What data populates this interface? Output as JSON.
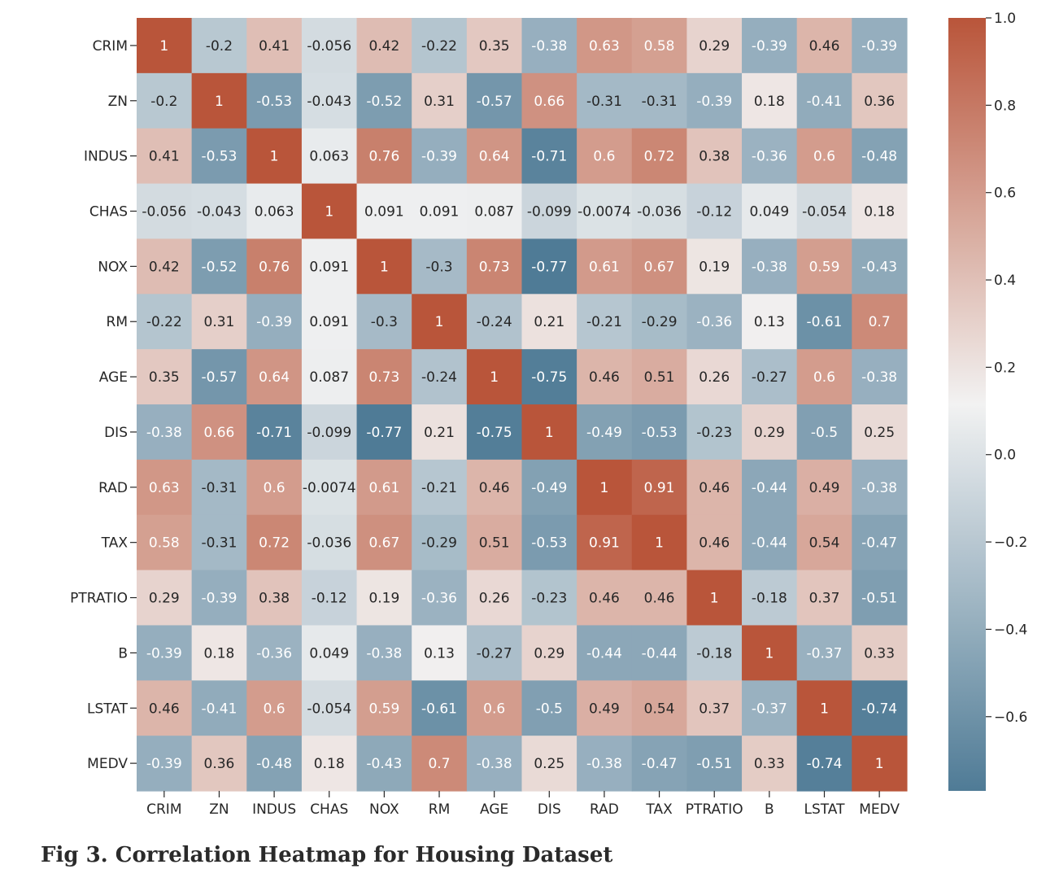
{
  "caption": "Fig 3. Correlation Heatmap for Housing Dataset",
  "chart_data": {
    "type": "heatmap",
    "title": "",
    "rows": [
      "CRIM",
      "ZN",
      "INDUS",
      "CHAS",
      "NOX",
      "RM",
      "AGE",
      "DIS",
      "RAD",
      "TAX",
      "PTRATIO",
      "B",
      "LSTAT",
      "MEDV"
    ],
    "columns": [
      "CRIM",
      "ZN",
      "INDUS",
      "CHAS",
      "NOX",
      "RM",
      "AGE",
      "DIS",
      "RAD",
      "TAX",
      "PTRATIO",
      "B",
      "LSTAT",
      "MEDV"
    ],
    "values": [
      [
        1,
        -0.2,
        0.41,
        -0.056,
        0.42,
        -0.22,
        0.35,
        -0.38,
        0.63,
        0.58,
        0.29,
        -0.39,
        0.46,
        -0.39
      ],
      [
        -0.2,
        1,
        -0.53,
        -0.043,
        -0.52,
        0.31,
        -0.57,
        0.66,
        -0.31,
        -0.31,
        -0.39,
        0.18,
        -0.41,
        0.36
      ],
      [
        0.41,
        -0.53,
        1,
        0.063,
        0.76,
        -0.39,
        0.64,
        -0.71,
        0.6,
        0.72,
        0.38,
        -0.36,
        0.6,
        -0.48
      ],
      [
        -0.056,
        -0.043,
        0.063,
        1,
        0.091,
        0.091,
        0.087,
        -0.099,
        -0.0074,
        -0.036,
        -0.12,
        0.049,
        -0.054,
        0.18
      ],
      [
        0.42,
        -0.52,
        0.76,
        0.091,
        1,
        -0.3,
        0.73,
        -0.77,
        0.61,
        0.67,
        0.19,
        -0.38,
        0.59,
        -0.43
      ],
      [
        -0.22,
        0.31,
        -0.39,
        0.091,
        -0.3,
        1,
        -0.24,
        0.21,
        -0.21,
        -0.29,
        -0.36,
        0.13,
        -0.61,
        0.7
      ],
      [
        0.35,
        -0.57,
        0.64,
        0.087,
        0.73,
        -0.24,
        1,
        -0.75,
        0.46,
        0.51,
        0.26,
        -0.27,
        0.6,
        -0.38
      ],
      [
        -0.38,
        0.66,
        -0.71,
        -0.099,
        -0.77,
        0.21,
        -0.75,
        1,
        -0.49,
        -0.53,
        -0.23,
        0.29,
        -0.5,
        0.25
      ],
      [
        0.63,
        -0.31,
        0.6,
        -0.0074,
        0.61,
        -0.21,
        0.46,
        -0.49,
        1,
        0.91,
        0.46,
        -0.44,
        0.49,
        -0.38
      ],
      [
        0.58,
        -0.31,
        0.72,
        -0.036,
        0.67,
        -0.29,
        0.51,
        -0.53,
        0.91,
        1,
        0.46,
        -0.44,
        0.54,
        -0.47
      ],
      [
        0.29,
        -0.39,
        0.38,
        -0.12,
        0.19,
        -0.36,
        0.26,
        -0.23,
        0.46,
        0.46,
        1,
        -0.18,
        0.37,
        -0.51
      ],
      [
        -0.39,
        0.18,
        -0.36,
        0.049,
        -0.38,
        0.13,
        -0.27,
        0.29,
        -0.44,
        -0.44,
        -0.18,
        1,
        -0.37,
        0.33
      ],
      [
        0.46,
        -0.41,
        0.6,
        -0.054,
        0.59,
        -0.61,
        0.6,
        -0.5,
        0.49,
        0.54,
        0.37,
        -0.37,
        1,
        -0.74
      ],
      [
        -0.39,
        0.36,
        -0.48,
        0.18,
        -0.43,
        0.7,
        -0.38,
        0.25,
        -0.38,
        -0.47,
        -0.51,
        0.33,
        -0.74,
        1
      ]
    ],
    "annotate": true,
    "colormap": "diverging blue-white-red",
    "colors": {
      "low": "#4f7b96",
      "mid": "#f2f2f2",
      "high": "#b9553a"
    },
    "colorbar": {
      "range": [
        -0.77,
        1.0
      ],
      "ticks": [
        1.0,
        0.8,
        0.6,
        0.4,
        0.2,
        0.0,
        -0.2,
        -0.4,
        -0.6
      ],
      "tick_labels": [
        "1.0",
        "0.8",
        "0.6",
        "0.4",
        "0.2",
        "0.0",
        "−0.2",
        "−0.4",
        "−0.6"
      ]
    },
    "legend": "colorbar right"
  }
}
